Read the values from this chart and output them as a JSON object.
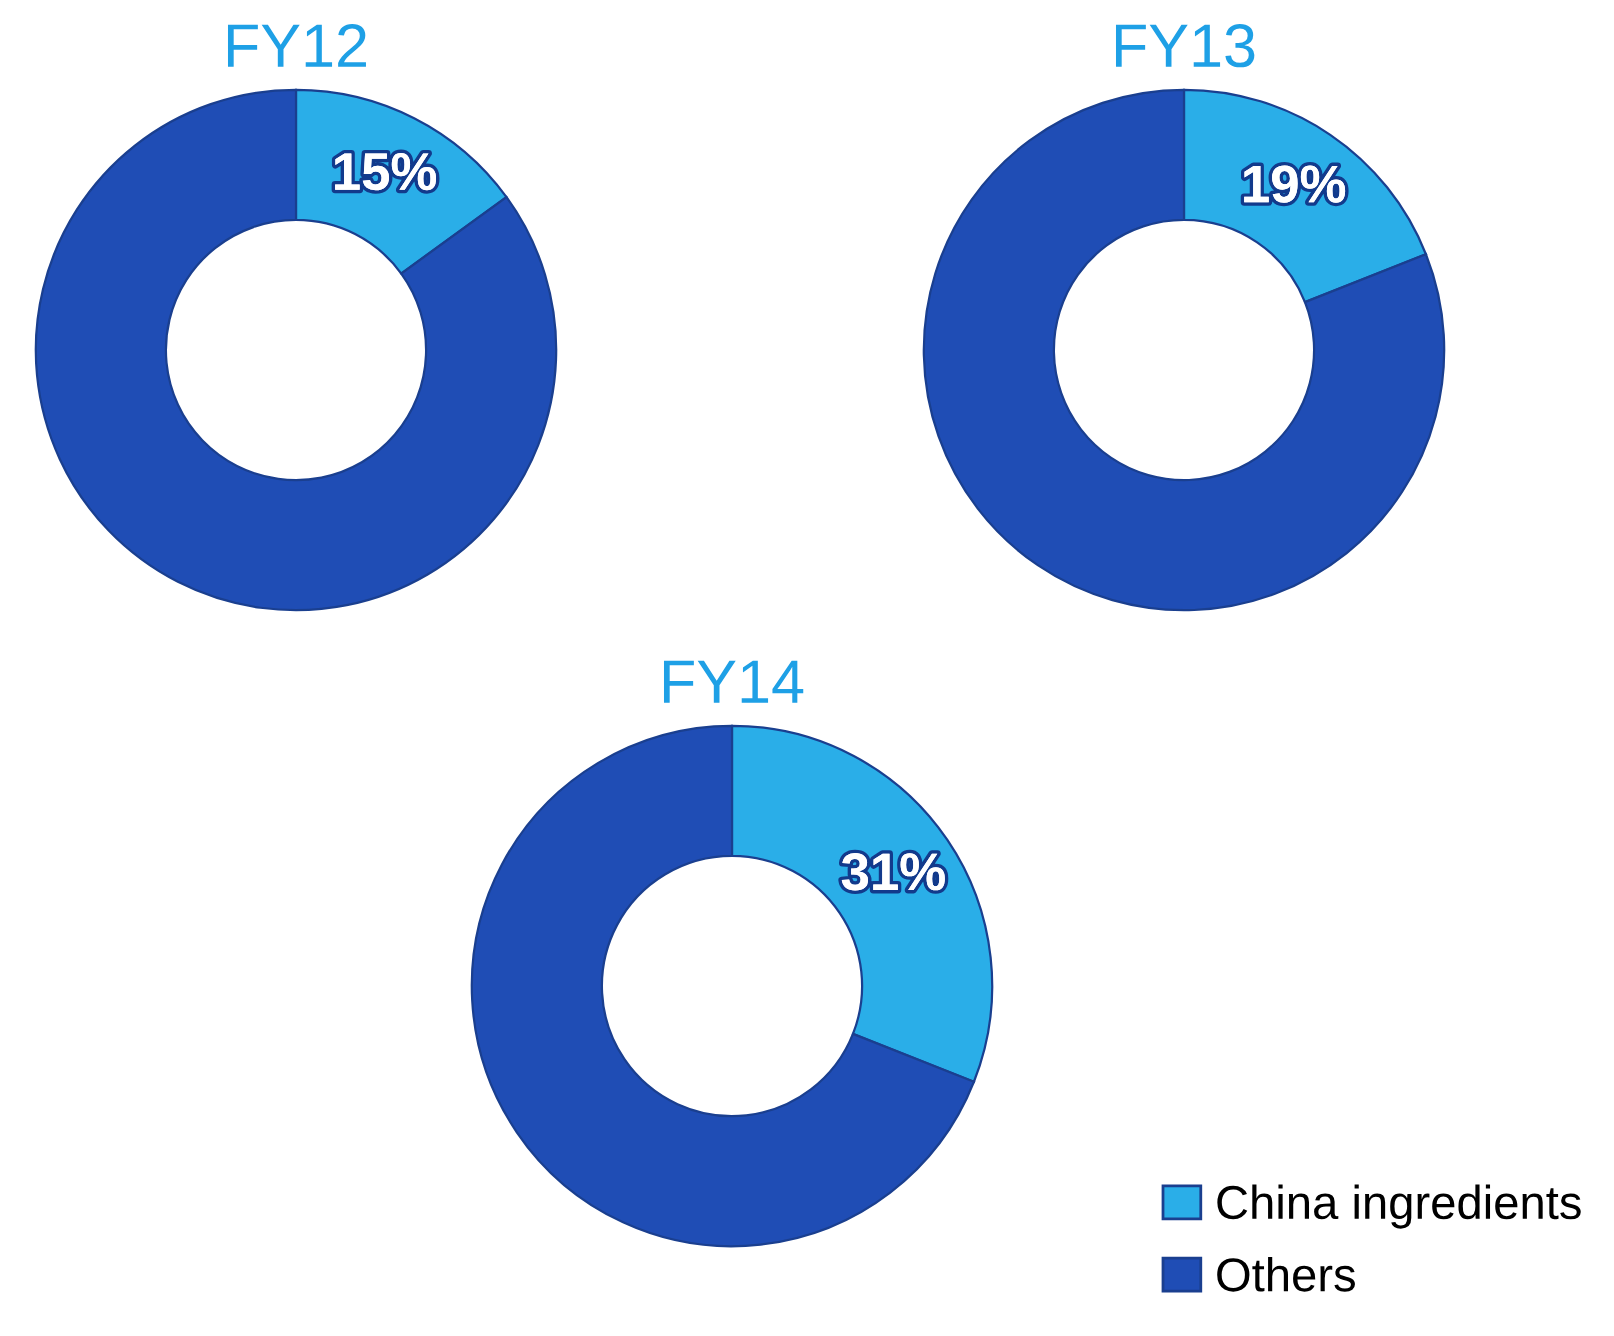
{
  "chart_data": [
    {
      "type": "donut",
      "title": "FY12",
      "categories": [
        "China ingredients",
        "Others"
      ],
      "values": [
        15,
        85
      ],
      "colors": [
        "#2aaee8",
        "#1f4db5"
      ],
      "value_labels": [
        "15%",
        null
      ],
      "legend": "bottom right"
    },
    {
      "type": "donut",
      "title": "FY13",
      "categories": [
        null,
        null
      ],
      "values": [
        19,
        81
      ],
      "colors": [
        "#2aaee8",
        "#1f4db5"
      ],
      "value_labels": [
        "19%",
        null
      ]
    },
    {
      "type": "donut",
      "title": "FY14",
      "categories": [
        null,
        null
      ],
      "values": [
        31,
        69
      ],
      "colors": [
        "#2aaee8",
        "#1f4db5"
      ],
      "value_labels": [
        "31%",
        null
      ]
    }
  ]
}
